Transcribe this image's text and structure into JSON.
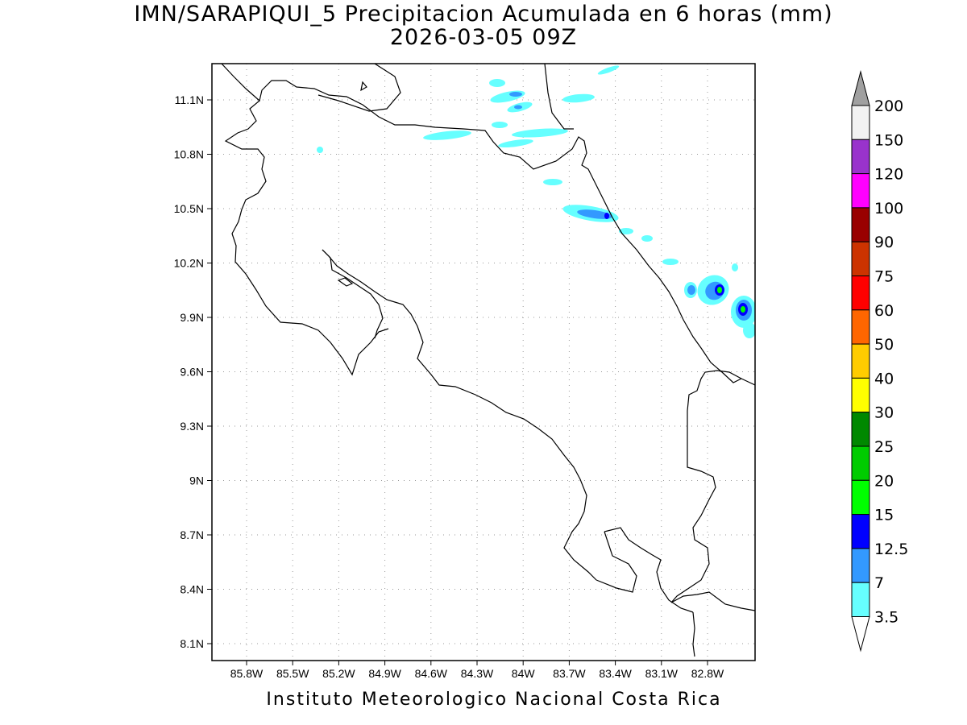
{
  "title_line1": "IMN/SARAPIQUI_5 Precipitacion Acumulada en 6 horas (mm)",
  "title_line2": "2026-03-05 09Z",
  "footer": "Instituto Meteorologico Nacional Costa Rica",
  "map": {
    "lon_labels": [
      "85.8W",
      "85.5W",
      "85.2W",
      "84.9W",
      "84.6W",
      "84.3W",
      "84W",
      "83.7W",
      "83.4W",
      "83.1W",
      "82.8W"
    ],
    "lat_labels": [
      "11.1N",
      "10.8N",
      "10.5N",
      "10.2N",
      "9.9N",
      "9.6N",
      "9.3N",
      "9N",
      "8.7N",
      "8.4N",
      "8.1N"
    ],
    "lon_range": [
      -86.0,
      -82.6
    ],
    "lat_range": [
      8.0,
      11.3
    ]
  },
  "colorbar": {
    "levels": [
      "3.5",
      "7",
      "12.5",
      "15",
      "20",
      "25",
      "30",
      "40",
      "50",
      "60",
      "75",
      "90",
      "100",
      "120",
      "150",
      "200"
    ],
    "colors": [
      "#ffffff",
      "#66ffff",
      "#3399ff",
      "#0000ff",
      "#00ff00",
      "#00cc00",
      "#008800",
      "#ffff00",
      "#ffcc00",
      "#ff6600",
      "#ff0000",
      "#cc3300",
      "#990000",
      "#ff00ff",
      "#9933cc",
      "#f2f2f2",
      "#a0a0a0"
    ]
  }
}
